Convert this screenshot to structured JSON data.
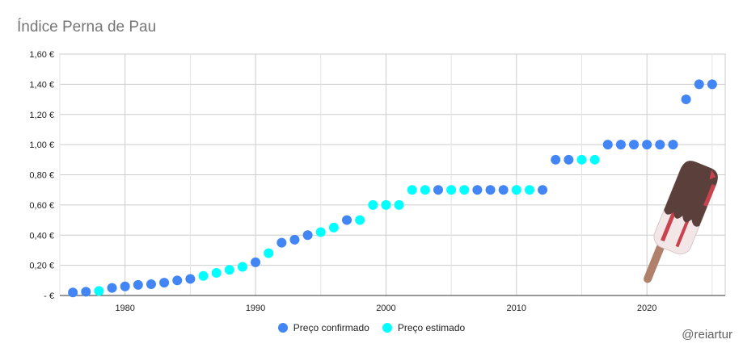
{
  "chart_data": {
    "type": "scatter",
    "title": "Índice Perna de Pau",
    "xlabel": "",
    "ylabel": "",
    "xlim": [
      1975,
      2026
    ],
    "ylim": [
      0,
      1.6
    ],
    "x_ticks": [
      1980,
      1990,
      2000,
      2010,
      2020
    ],
    "y_ticks": [
      {
        "value": 0.0,
        "label": "-   €"
      },
      {
        "value": 0.2,
        "label": "0,20 €"
      },
      {
        "value": 0.4,
        "label": "0,40 €"
      },
      {
        "value": 0.6,
        "label": "0,60 €"
      },
      {
        "value": 0.8,
        "label": "0,80 €"
      },
      {
        "value": 1.0,
        "label": "1,00 €"
      },
      {
        "value": 1.2,
        "label": "1,20 €"
      },
      {
        "value": 1.4,
        "label": "1,40 €"
      },
      {
        "value": 1.6,
        "label": "1,60 €"
      }
    ],
    "grid": true,
    "legend_position": "bottom",
    "series": [
      {
        "name": "Preço confirmado",
        "color": "#4285f4",
        "points": [
          [
            1976,
            0.02
          ],
          [
            1977,
            0.025
          ],
          [
            1979,
            0.05
          ],
          [
            1980,
            0.06
          ],
          [
            1981,
            0.07
          ],
          [
            1982,
            0.075
          ],
          [
            1983,
            0.085
          ],
          [
            1984,
            0.1
          ],
          [
            1985,
            0.11
          ],
          [
            1990,
            0.22
          ],
          [
            1992,
            0.35
          ],
          [
            1993,
            0.37
          ],
          [
            1994,
            0.4
          ],
          [
            1997,
            0.5
          ],
          [
            2004,
            0.7
          ],
          [
            2007,
            0.7
          ],
          [
            2008,
            0.7
          ],
          [
            2009,
            0.7
          ],
          [
            2012,
            0.7
          ],
          [
            2013,
            0.9
          ],
          [
            2014,
            0.9
          ],
          [
            2017,
            1.0
          ],
          [
            2018,
            1.0
          ],
          [
            2019,
            1.0
          ],
          [
            2020,
            1.0
          ],
          [
            2021,
            1.0
          ],
          [
            2022,
            1.0
          ],
          [
            2023,
            1.3
          ],
          [
            2024,
            1.4
          ],
          [
            2025,
            1.4
          ]
        ]
      },
      {
        "name": "Preço estimado",
        "color": "#00ffff",
        "points": [
          [
            1978,
            0.03
          ],
          [
            1986,
            0.13
          ],
          [
            1987,
            0.15
          ],
          [
            1988,
            0.17
          ],
          [
            1989,
            0.19
          ],
          [
            1991,
            0.28
          ],
          [
            1995,
            0.42
          ],
          [
            1996,
            0.45
          ],
          [
            1998,
            0.5
          ],
          [
            1999,
            0.6
          ],
          [
            2000,
            0.6
          ],
          [
            2001,
            0.6
          ],
          [
            2002,
            0.7
          ],
          [
            2003,
            0.7
          ],
          [
            2005,
            0.7
          ],
          [
            2006,
            0.7
          ],
          [
            2010,
            0.7
          ],
          [
            2011,
            0.7
          ],
          [
            2015,
            0.9
          ],
          [
            2016,
            0.9
          ]
        ]
      }
    ]
  },
  "watermark": "@reiartur",
  "decoration": {
    "icon": "popsicle-icon"
  }
}
